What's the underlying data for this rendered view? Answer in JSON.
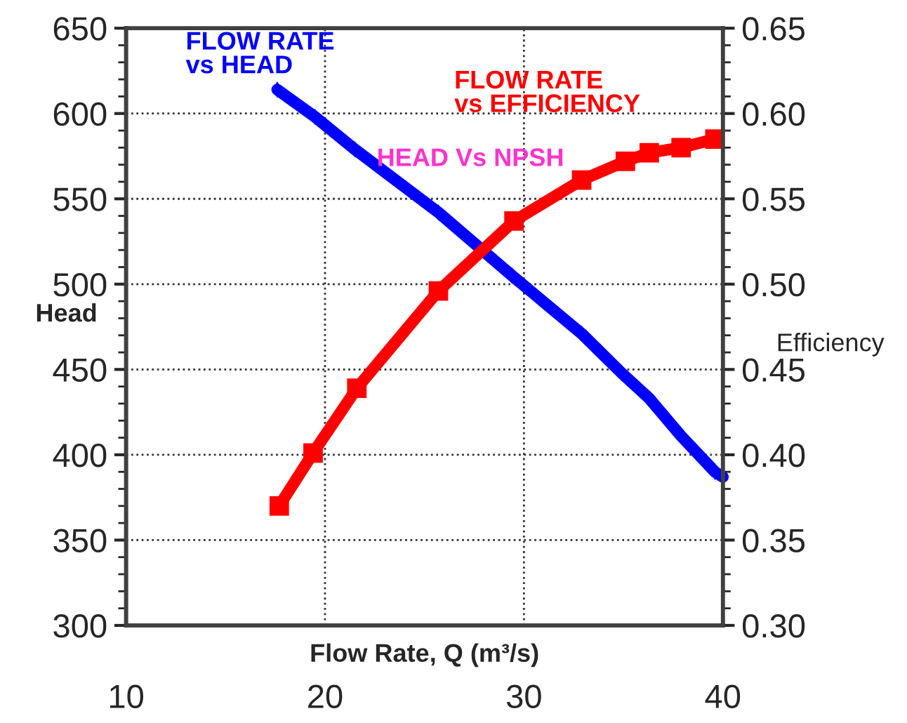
{
  "chart_data": {
    "type": "line",
    "xlabel": "Flow Rate, Q (m³/s)",
    "ylabel": "Head",
    "y2label": "Efficiency",
    "xlim": [
      10,
      40
    ],
    "xticks": [
      10,
      20,
      30,
      40
    ],
    "ylim": [
      300,
      650
    ],
    "yticks": [
      300,
      350,
      400,
      450,
      500,
      550,
      600,
      650
    ],
    "y2lim": [
      0.3,
      0.65
    ],
    "y2ticks": [
      {
        "value": 0.3,
        "label": "0.30"
      },
      {
        "value": 0.35,
        "label": "0.35"
      },
      {
        "value": 0.4,
        "label": "0.40"
      },
      {
        "value": 0.45,
        "label": "0.45"
      },
      {
        "value": 0.5,
        "label": "0.50"
      },
      {
        "value": 0.55,
        "label": "0.55"
      },
      {
        "value": 0.6,
        "label": "0.60"
      },
      {
        "value": 0.65,
        "label": "0.65"
      }
    ],
    "grid": true,
    "legend": false,
    "annotations": [
      "HEAD Vs NPSH"
    ],
    "series": [
      {
        "name": "FLOW RATE vs HEAD",
        "color": "#0000ff",
        "marker": "diamond",
        "x": [
          17.6,
          19.5,
          21.5,
          25.7,
          29.4,
          32.9,
          34.9,
          36.3,
          37.9,
          39.6,
          40
        ],
        "values": [
          614,
          598,
          579,
          542,
          505,
          471,
          448,
          433,
          411,
          390,
          387
        ]
      },
      {
        "name": "FLOW RATE vs EFFICIENCY",
        "color": "#ff0000",
        "marker": "square",
        "axis": "y2",
        "x": [
          17.7,
          19.4,
          21.6,
          25.7,
          29.5,
          32.9,
          35.1,
          36.3,
          37.9,
          39.6
        ],
        "values": [
          0.37,
          0.401,
          0.439,
          0.496,
          0.537,
          0.561,
          0.572,
          0.577,
          0.58,
          0.585
        ]
      }
    ]
  }
}
